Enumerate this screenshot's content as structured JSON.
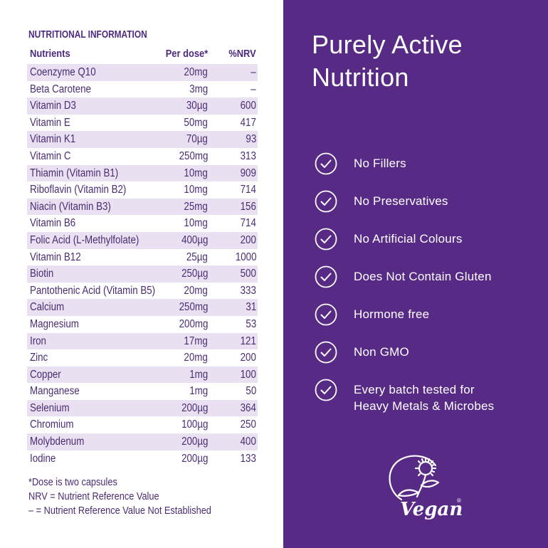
{
  "nutrition": {
    "title": "NUTRITIONAL INFORMATION",
    "headers": {
      "nutrient": "Nutrients",
      "dose": "Per dose*",
      "nrv": "%NRV"
    },
    "rows": [
      {
        "name": "Coenzyme Q10",
        "dose": "20mg",
        "nrv": "–"
      },
      {
        "name": "Beta Carotene",
        "dose": "3mg",
        "nrv": "–"
      },
      {
        "name": "Vitamin D3",
        "dose": "30µg",
        "nrv": "600"
      },
      {
        "name": "Vitamin E",
        "dose": "50mg",
        "nrv": "417"
      },
      {
        "name": "Vitamin K1",
        "dose": "70µg",
        "nrv": "93"
      },
      {
        "name": "Vitamin C",
        "dose": "250mg",
        "nrv": "313"
      },
      {
        "name": "Thiamin (Vitamin B1)",
        "dose": "10mg",
        "nrv": "909"
      },
      {
        "name": "Riboflavin (Vitamin B2)",
        "dose": "10mg",
        "nrv": "714"
      },
      {
        "name": "Niacin (Vitamin B3)",
        "dose": "25mg",
        "nrv": "156"
      },
      {
        "name": "Vitamin B6",
        "dose": "10mg",
        "nrv": "714"
      },
      {
        "name": "Folic Acid (L-Methylfolate)",
        "dose": "400µg",
        "nrv": "200"
      },
      {
        "name": "Vitamin B12",
        "dose": "25µg",
        "nrv": "1000"
      },
      {
        "name": "Biotin",
        "dose": "250µg",
        "nrv": "500"
      },
      {
        "name": "Pantothenic Acid (Vitamin B5)",
        "dose": "20mg",
        "nrv": "333"
      },
      {
        "name": "Calcium",
        "dose": "250mg",
        "nrv": "31"
      },
      {
        "name": "Magnesium",
        "dose": "200mg",
        "nrv": "53"
      },
      {
        "name": "Iron",
        "dose": "17mg",
        "nrv": "121"
      },
      {
        "name": "Zinc",
        "dose": "20mg",
        "nrv": "200"
      },
      {
        "name": "Copper",
        "dose": "1mg",
        "nrv": "100"
      },
      {
        "name": "Manganese",
        "dose": "1mg",
        "nrv": "50"
      },
      {
        "name": "Selenium",
        "dose": "200µg",
        "nrv": "364"
      },
      {
        "name": "Chromium",
        "dose": "100µg",
        "nrv": "250"
      },
      {
        "name": "Molybdenum",
        "dose": "200µg",
        "nrv": "400"
      },
      {
        "name": "Iodine",
        "dose": "200µg",
        "nrv": "133"
      }
    ],
    "footnotes": [
      "*Dose is two capsules",
      "NRV = Nutrient Reference Value",
      "– = Nutrient Reference Value Not Established"
    ]
  },
  "panel": {
    "headline_line1": "Purely Active",
    "headline_line2": "Nutrition",
    "features": [
      {
        "icon": "check-circle-icon",
        "text": "No Fillers"
      },
      {
        "icon": "check-circle-icon",
        "text": "No Preservatives"
      },
      {
        "icon": "check-circle-icon",
        "text": "No Artificial Colours"
      },
      {
        "icon": "check-circle-icon",
        "text": "Does Not Contain Gluten"
      },
      {
        "icon": "check-circle-icon",
        "text": "Hormone free"
      },
      {
        "icon": "check-circle-icon",
        "text": "Non GMO"
      },
      {
        "icon": "check-circle-icon",
        "text": "Every batch tested for Heavy Metals & Microbes",
        "line1": "Every batch tested for",
        "line2": "Heavy Metals & Microbes"
      }
    ],
    "logo": {
      "icon": "vegan-logo-icon",
      "text": "Vegan",
      "registered": "®"
    }
  },
  "colors": {
    "panel_bg": "#572a86",
    "table_text": "#4a2c72",
    "row_shade": "#e9e1f2",
    "white": "#ffffff"
  }
}
